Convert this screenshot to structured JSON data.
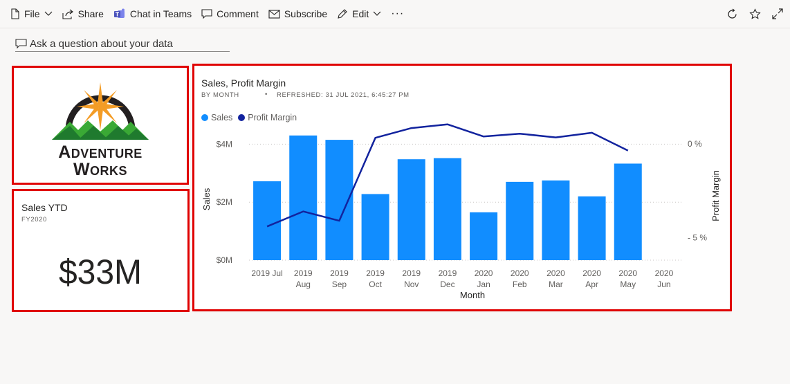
{
  "toolbar": {
    "file": "File",
    "share": "Share",
    "chat_in_teams": "Chat in Teams",
    "comment": "Comment",
    "subscribe": "Subscribe",
    "edit": "Edit",
    "more": "···"
  },
  "qa": {
    "placeholder": "Ask a question about your data"
  },
  "logo": {
    "line1": "Adventure",
    "line2": "Works"
  },
  "kpi_tile": {
    "title": "Sales YTD",
    "subtitle": "FY2020",
    "value": "$33M"
  },
  "chart_tile": {
    "title": "Sales, Profit Margin",
    "by": "BY MONTH",
    "refreshed": "REFRESHED: 31 JUL 2021, 6:45:27 PM"
  },
  "colors": {
    "sales": "#118dff",
    "profit_margin": "#12239e",
    "highlight": "#e00000"
  },
  "chart_data": {
    "type": "bar",
    "title": "Sales, Profit Margin",
    "xlabel": "Month",
    "ylabel": "Sales",
    "y2label": "Profit Margin",
    "legend_position": "top-left",
    "categories": [
      [
        "2019 Jul",
        ""
      ],
      [
        "2019",
        "Aug"
      ],
      [
        "2019",
        "Sep"
      ],
      [
        "2019",
        "Oct"
      ],
      [
        "2019",
        "Nov"
      ],
      [
        "2019",
        "Dec"
      ],
      [
        "2020",
        "Jan"
      ],
      [
        "2020",
        "Feb"
      ],
      [
        "2020",
        "Mar"
      ],
      [
        "2020",
        "Apr"
      ],
      [
        "2020",
        "May"
      ],
      [
        "2020",
        "Jun"
      ]
    ],
    "y_ticks": [
      "$0M",
      "$2M",
      "$4M"
    ],
    "y_tick_values": [
      0,
      2,
      4
    ],
    "ylim": [
      0,
      4.2
    ],
    "y2_ticks": [
      "- 5 %",
      "0 %"
    ],
    "y2_tick_values": [
      -5,
      0
    ],
    "y2lim": [
      -6.2,
      0.3
    ],
    "grid": true,
    "series": [
      {
        "name": "Sales",
        "type": "bar",
        "values": [
          2.72,
          4.3,
          4.15,
          2.28,
          3.48,
          3.52,
          1.65,
          2.7,
          2.75,
          2.2,
          3.33,
          null
        ]
      },
      {
        "name": "Profit Margin",
        "type": "line",
        "values": [
          -4.4,
          -3.6,
          -4.1,
          0.33,
          0.85,
          1.05,
          0.4,
          0.55,
          0.35,
          0.6,
          -0.35,
          null
        ]
      }
    ]
  }
}
